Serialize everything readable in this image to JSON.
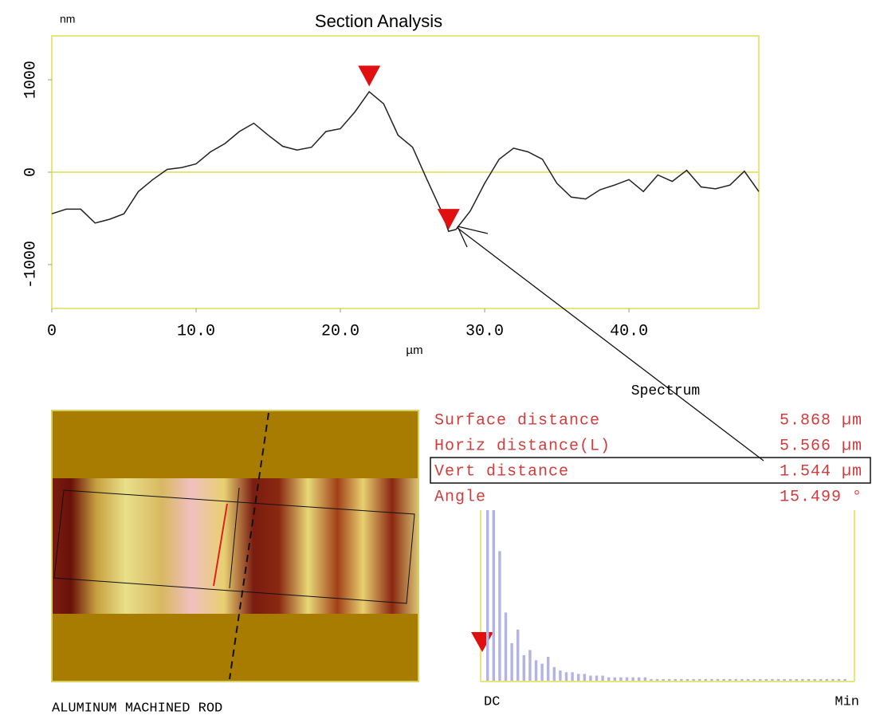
{
  "chart_data": {
    "type": "line",
    "title": "Section Analysis",
    "y_unit": "nm",
    "x_label": "µm",
    "x": [
      0,
      1,
      2,
      3,
      4,
      5,
      6,
      7,
      8,
      9,
      10,
      11,
      12,
      13,
      14,
      15,
      16,
      17,
      18,
      19,
      20,
      21,
      22,
      23,
      24,
      25,
      26,
      27,
      27.5,
      28,
      29,
      30,
      31,
      32,
      33,
      34,
      35,
      36,
      37,
      38,
      39,
      40,
      41,
      42,
      43,
      44,
      45,
      46,
      47,
      48,
      49
    ],
    "values": [
      -450,
      -400,
      -400,
      -550,
      -510,
      -450,
      -210,
      -80,
      30,
      50,
      90,
      220,
      310,
      440,
      530,
      400,
      280,
      240,
      270,
      440,
      470,
      650,
      870,
      740,
      400,
      270,
      -80,
      -420,
      -640,
      -620,
      -420,
      -120,
      140,
      260,
      220,
      140,
      -120,
      -270,
      -290,
      -190,
      -140,
      -80,
      -210,
      -30,
      -100,
      20,
      -160,
      -180,
      -140,
      10,
      -210
    ],
    "color": "#222222",
    "xlim": [
      0,
      49
    ],
    "ylim": [
      -1475,
      1475
    ],
    "xticks": [
      0,
      {
        "value": 10,
        "label": "10.0"
      },
      {
        "value": 20,
        "label": "20.0"
      },
      {
        "value": 30,
        "label": "30.0"
      },
      {
        "value": 40,
        "label": "40.0"
      }
    ],
    "yticks": [
      1000,
      0,
      -1000
    ],
    "zero_line": true,
    "cursors": [
      {
        "x": 22,
        "y": 1040
      },
      {
        "x": 27.5,
        "y": -510
      }
    ]
  },
  "spectrum": {
    "title": "Spectrum",
    "start_label": "DC",
    "end_label": "Min",
    "ylim": [
      0,
      100
    ],
    "values": [
      100,
      100,
      76,
      40,
      22,
      30,
      15,
      18,
      12,
      10,
      14,
      8,
      6,
      5,
      5,
      4,
      4,
      3,
      3,
      3,
      2,
      2,
      2,
      2,
      2,
      2,
      2,
      1,
      1,
      1,
      1,
      1,
      1,
      1,
      1,
      1,
      1,
      1,
      1,
      1,
      1,
      1,
      1,
      1,
      1,
      1,
      1,
      1,
      1,
      1,
      1,
      1,
      1,
      1,
      1,
      1,
      1,
      1,
      1,
      1
    ]
  },
  "measurements": [
    {
      "label": "Surface distance",
      "value": "5.868 µm"
    },
    {
      "label": "Horiz distance(L)",
      "value": "5.566 µm"
    },
    {
      "label": "Vert distance",
      "value": "1.544 µm"
    },
    {
      "label": "Angle",
      "value": "15.499 °"
    }
  ],
  "image_caption": "ALUMINUM MACHINED ROD"
}
